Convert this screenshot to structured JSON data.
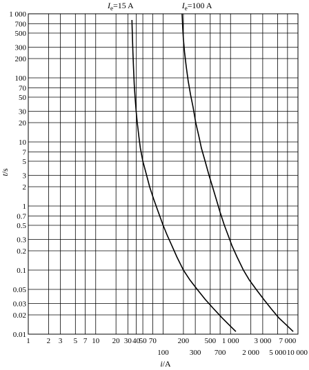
{
  "chart_data": {
    "type": "line",
    "xscale": "log",
    "yscale": "log",
    "xlim": [
      1,
      10000
    ],
    "ylim": [
      0.01,
      1000
    ],
    "grid": true,
    "xlabel": "i/A",
    "ylabel": "t/s",
    "x_ticks_upper": [
      {
        "value": 1,
        "label": "1"
      },
      {
        "value": 2,
        "label": "2"
      },
      {
        "value": 3,
        "label": "3"
      },
      {
        "value": 5,
        "label": "5"
      },
      {
        "value": 7,
        "label": "7"
      },
      {
        "value": 10,
        "label": "10"
      },
      {
        "value": 20,
        "label": "20"
      },
      {
        "value": 30,
        "label": "30"
      },
      {
        "value": 40,
        "label": "40"
      },
      {
        "value": 50,
        "label": "50"
      },
      {
        "value": 70,
        "label": "70"
      },
      {
        "value": 200,
        "label": "200"
      },
      {
        "value": 500,
        "label": "500"
      },
      {
        "value": 1000,
        "label": "1 000"
      },
      {
        "value": 3000,
        "label": "3 000"
      },
      {
        "value": 7000,
        "label": "7 000"
      }
    ],
    "x_ticks_lower": [
      {
        "value": 100,
        "label": "100"
      },
      {
        "value": 300,
        "label": "300"
      },
      {
        "value": 700,
        "label": "700"
      },
      {
        "value": 2000,
        "label": "2 000"
      },
      {
        "value": 5000,
        "label": "5 000"
      },
      {
        "value": 10000,
        "label": "10 000"
      }
    ],
    "y_ticks": [
      {
        "value": 1000,
        "label": "1 000"
      },
      {
        "value": 700,
        "label": "700"
      },
      {
        "value": 500,
        "label": "500"
      },
      {
        "value": 300,
        "label": "300"
      },
      {
        "value": 200,
        "label": "200"
      },
      {
        "value": 100,
        "label": "100"
      },
      {
        "value": 70,
        "label": "70"
      },
      {
        "value": 50,
        "label": "50"
      },
      {
        "value": 30,
        "label": "30"
      },
      {
        "value": 20,
        "label": "20"
      },
      {
        "value": 10,
        "label": "10"
      },
      {
        "value": 7,
        "label": "7"
      },
      {
        "value": 5,
        "label": "5"
      },
      {
        "value": 3,
        "label": "3"
      },
      {
        "value": 2,
        "label": "2"
      },
      {
        "value": 1,
        "label": "1"
      },
      {
        "value": 0.7,
        "label": "0.7"
      },
      {
        "value": 0.5,
        "label": "0.5"
      },
      {
        "value": 0.3,
        "label": "0.3"
      },
      {
        "value": 0.2,
        "label": "0.2"
      },
      {
        "value": 0.1,
        "label": "0.1"
      },
      {
        "value": 0.05,
        "label": "0.05"
      },
      {
        "value": 0.03,
        "label": "0.03"
      },
      {
        "value": 0.02,
        "label": "0.02"
      },
      {
        "value": 0.01,
        "label": "0.01"
      }
    ],
    "x_grid": [
      1,
      2,
      3,
      5,
      7,
      10,
      20,
      30,
      40,
      50,
      70,
      100,
      200,
      300,
      500,
      700,
      1000,
      2000,
      3000,
      5000,
      7000,
      10000
    ],
    "y_grid": [
      0.01,
      0.02,
      0.03,
      0.05,
      0.1,
      0.2,
      0.3,
      0.5,
      0.7,
      1,
      2,
      3,
      5,
      7,
      10,
      20,
      30,
      50,
      70,
      100,
      200,
      300,
      500,
      700,
      1000
    ],
    "series": [
      {
        "name": "I_e=15 A",
        "label_main": "I",
        "label_sub": "e",
        "label_rest": "=15 A",
        "label_at": {
          "x": 15,
          "y": 1000
        },
        "points": [
          [
            34.5,
            800
          ],
          [
            34.7,
            600
          ],
          [
            35.1,
            400
          ],
          [
            35.6,
            250
          ],
          [
            36.3,
            150
          ],
          [
            37.3,
            80
          ],
          [
            38.3,
            50
          ],
          [
            39.8,
            30
          ],
          [
            41.3,
            20
          ],
          [
            43.7,
            12
          ],
          [
            46,
            8
          ],
          [
            50,
            5
          ],
          [
            57,
            3
          ],
          [
            63,
            2
          ],
          [
            72,
            1.3
          ],
          [
            85,
            0.8
          ],
          [
            100,
            0.5
          ],
          [
            115,
            0.35
          ],
          [
            135,
            0.24
          ],
          [
            160,
            0.16
          ],
          [
            200,
            0.1
          ],
          [
            250,
            0.07
          ],
          [
            320,
            0.05
          ],
          [
            420,
            0.035
          ],
          [
            560,
            0.025
          ],
          [
            750,
            0.018
          ],
          [
            950,
            0.014
          ],
          [
            1200,
            0.011
          ]
        ]
      },
      {
        "name": "I_e=100 A",
        "label_main": "I",
        "label_sub": "e",
        "label_rest": "=100 A",
        "label_at": {
          "x": 190,
          "y": 1000
        },
        "points": [
          [
            191,
            1000
          ],
          [
            195,
            600
          ],
          [
            200,
            400
          ],
          [
            208,
            250
          ],
          [
            220,
            150
          ],
          [
            235,
            90
          ],
          [
            255,
            55
          ],
          [
            278,
            35
          ],
          [
            305,
            20
          ],
          [
            340,
            12
          ],
          [
            370,
            8
          ],
          [
            420,
            5
          ],
          [
            480,
            3
          ],
          [
            540,
            2
          ],
          [
            610,
            1.3
          ],
          [
            700,
            0.8
          ],
          [
            810,
            0.5
          ],
          [
            920,
            0.35
          ],
          [
            1050,
            0.24
          ],
          [
            1250,
            0.16
          ],
          [
            1550,
            0.1
          ],
          [
            1900,
            0.07
          ],
          [
            2400,
            0.05
          ],
          [
            3100,
            0.035
          ],
          [
            4000,
            0.025
          ],
          [
            5200,
            0.018
          ],
          [
            6700,
            0.014
          ],
          [
            8500,
            0.011
          ]
        ]
      }
    ]
  }
}
